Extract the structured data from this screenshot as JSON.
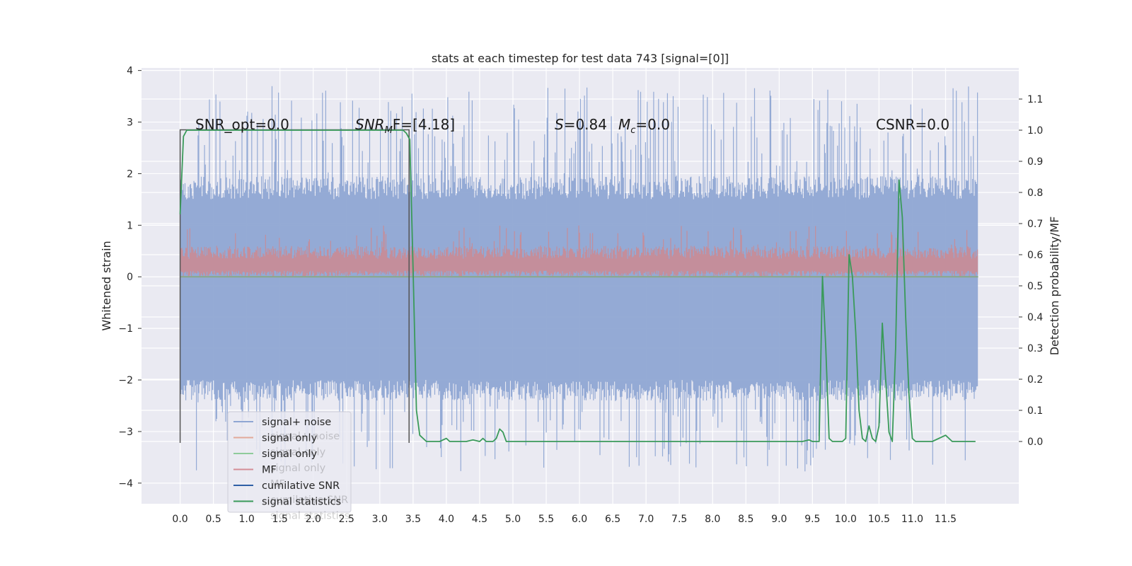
{
  "chart_data": {
    "type": "line",
    "title": "stats at each timestep for test data 743 [signal=[0]]",
    "xlabel": "",
    "ylabel": "Whitened strain",
    "ylabel_right": "Detection probability/MF",
    "xlim": [
      -0.58,
      12.6
    ],
    "ylim": [
      -4.4,
      4.05
    ],
    "ylim_right": [
      -0.2,
      1.2
    ],
    "x_ticks": [
      "0.0",
      "0.5",
      "1.0",
      "1.5",
      "2.0",
      "2.5",
      "3.0",
      "3.5",
      "4.0",
      "4.5",
      "5.0",
      "5.5",
      "6.0",
      "6.5",
      "7.0",
      "7.5",
      "8.0",
      "8.5",
      "9.0",
      "9.5",
      "10.0",
      "10.5",
      "11.0",
      "11.5"
    ],
    "y_ticks": [
      "4",
      "3",
      "2",
      "1",
      "0",
      "−1",
      "−2",
      "−3",
      "−4"
    ],
    "y_ticks_right": [
      "1.1",
      "1.0",
      "0.9",
      "0.8",
      "0.7",
      "0.6",
      "0.5",
      "0.4",
      "0.3",
      "0.2",
      "0.1",
      "0.0"
    ],
    "grid": true,
    "legend_position": "lower-left",
    "annotations": {
      "snr_opt": "SNR_opt=0.0",
      "snr_mf_base": "SNR",
      "snr_mf_sub": "M",
      "snr_mf_rest": "F=[4.18]",
      "s_label": "S",
      "s_value": "=0.84",
      "mc_label": "M",
      "mc_sub": "c",
      "mc_value": "=0.0",
      "csnr": "CSNR=0.0"
    },
    "legend": [
      {
        "label": "signal+ noise",
        "color": "#8fa6d3"
      },
      {
        "label": "signal only",
        "color": "#e2a99a"
      },
      {
        "label": "signal only",
        "color": "#8fcb9b"
      },
      {
        "label": "MF",
        "color": "#d48d97"
      },
      {
        "label": "cumilative SNR",
        "color": "#2f5fa6"
      },
      {
        "label": "signal statistics",
        "color": "#3a9a5a"
      }
    ],
    "legend_ghost": [
      {
        "label": "signal+ noise"
      },
      {
        "label": "signal only"
      },
      {
        "label": "signal only"
      },
      {
        "label": "MF"
      },
      {
        "label": "cumilative SNR"
      },
      {
        "label": "signal statistics"
      }
    ],
    "series": [
      {
        "name": "signal+ noise",
        "axis": "left",
        "color": "#8fa6d3",
        "x_range": [
          0.0,
          11.99
        ],
        "band_min": -2.0,
        "band_max": 1.5,
        "peak_min": -4.1,
        "peak_max": 3.7
      },
      {
        "name": "MF",
        "axis": "left",
        "color": "#c98b95",
        "x_range": [
          0.0,
          11.99
        ],
        "band_min": 0.0,
        "band_max": 0.35,
        "peak_max": 1.0
      },
      {
        "name": "signal only",
        "axis": "left",
        "color": "#8aa888",
        "x_range": [
          0.0,
          11.99
        ],
        "y": 0.0
      },
      {
        "name": "cumilative SNR",
        "axis": "left",
        "color": "#555555",
        "x": [
          0.0,
          0.0,
          3.44,
          3.44
        ],
        "y": [
          -3.22,
          2.85,
          2.85,
          -3.22
        ]
      },
      {
        "name": "signal statistics",
        "axis": "right",
        "color": "#3a9a5a",
        "x": [
          0.0,
          0.05,
          0.1,
          0.15,
          0.2,
          3.3,
          3.35,
          3.4,
          3.45,
          3.5,
          3.55,
          3.6,
          3.7,
          3.8,
          3.9,
          4.0,
          4.05,
          4.1,
          4.2,
          4.3,
          4.4,
          4.5,
          4.55,
          4.6,
          4.7,
          4.75,
          4.8,
          4.85,
          4.9,
          5.0,
          5.1,
          5.3,
          6.0,
          6.2,
          6.5,
          7.0,
          8.0,
          8.5,
          9.0,
          9.2,
          9.35,
          9.45,
          9.5,
          9.55,
          9.6,
          9.65,
          9.7,
          9.75,
          9.8,
          9.85,
          9.9,
          9.95,
          10.0,
          10.05,
          10.1,
          10.15,
          10.2,
          10.25,
          10.3,
          10.35,
          10.4,
          10.45,
          10.5,
          10.55,
          10.6,
          10.65,
          10.7,
          10.75,
          10.8,
          10.85,
          10.9,
          10.95,
          11.0,
          11.05,
          11.1,
          11.15,
          11.2,
          11.3,
          11.5,
          11.6,
          11.65,
          11.7,
          11.8,
          11.95
        ],
        "y": [
          0.73,
          0.98,
          1.0,
          1.0,
          1.0,
          1.0,
          1.0,
          0.99,
          0.97,
          0.55,
          0.1,
          0.02,
          0.0,
          0.0,
          0.0,
          0.01,
          0.0,
          0.0,
          0.0,
          0.0,
          0.005,
          0.0,
          0.01,
          0.0,
          0.0,
          0.01,
          0.04,
          0.03,
          0.0,
          0.0,
          0.0,
          0.0,
          0.0,
          0.0,
          0.0,
          0.0,
          0.0,
          0.0,
          0.0,
          0.0,
          0.0,
          0.005,
          0.0,
          0.0,
          0.0,
          0.53,
          0.3,
          0.01,
          0.0,
          0.0,
          0.0,
          0.0,
          0.01,
          0.6,
          0.53,
          0.35,
          0.1,
          0.01,
          0.0,
          0.05,
          0.01,
          0.0,
          0.05,
          0.38,
          0.2,
          0.03,
          0.0,
          0.3,
          0.84,
          0.72,
          0.4,
          0.15,
          0.01,
          0.0,
          0.0,
          0.0,
          0.0,
          0.0,
          0.02,
          0.0,
          0.0,
          0.0,
          0.0,
          0.0
        ]
      }
    ]
  }
}
